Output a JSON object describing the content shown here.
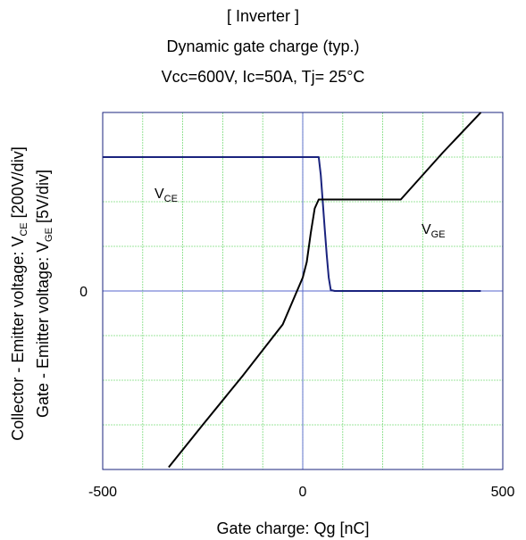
{
  "titles": {
    "line1": "[ Inverter ]",
    "line2": "Dynamic gate charge  (typ.)",
    "line3": "Vcc=600V,   Ic=50A,  Tj= 25°C"
  },
  "chart_data": {
    "type": "line",
    "xlabel": "Gate charge: Qg [nC]",
    "ylabel_outer": "Collector - Emitter voltage: V_CE [200V/div]",
    "ylabel_inner": "Gate - Emitter voltage:    V_GE [5V/div]",
    "xlim": [
      -500,
      500
    ],
    "x_ticks": [
      "-500",
      "0",
      "500"
    ],
    "y_ticks": [
      "0"
    ],
    "y_div_range": [
      -4,
      4
    ],
    "grid": true,
    "series": [
      {
        "name": "V_CE",
        "label_main": "V",
        "label_sub": "CE",
        "unit": "200V/div",
        "color": "#1a237e",
        "x": [
          -500,
          40,
          45,
          50,
          55,
          60,
          65,
          70,
          80,
          445
        ],
        "y": [
          3.0,
          3.0,
          2.6,
          2.0,
          1.4,
          0.8,
          0.3,
          0.02,
          0.0,
          0.0
        ]
      },
      {
        "name": "V_GE",
        "label_main": "V",
        "label_sub": "GE",
        "unit": "5V/div",
        "color": "#000000",
        "x": [
          -335,
          -250,
          -150,
          -50,
          0,
          10,
          20,
          30,
          40,
          50,
          245,
          260,
          350,
          445
        ],
        "y": [
          -3.95,
          -3.0,
          -1.9,
          -0.75,
          0.3,
          0.65,
          1.3,
          1.85,
          2.05,
          2.05,
          2.05,
          2.2,
          3.1,
          4.0
        ]
      }
    ]
  }
}
